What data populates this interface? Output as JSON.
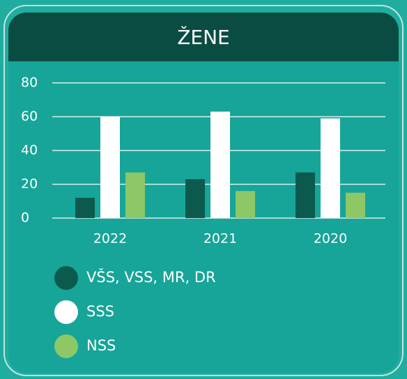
{
  "chart_data": {
    "type": "bar",
    "title": "ŽENE",
    "categories": [
      "2022",
      "2021",
      "2020"
    ],
    "series": [
      {
        "name": "VŠS, VSS, MR, DR",
        "color": "#0c5a4e",
        "values": [
          12,
          23,
          27
        ]
      },
      {
        "name": "SSS",
        "color": "#ffffff",
        "values": [
          60,
          63,
          59
        ]
      },
      {
        "name": "NSS",
        "color": "#8dc766",
        "values": [
          27,
          16,
          15
        ]
      }
    ],
    "ylim": [
      0,
      80
    ],
    "yticks": [
      0,
      20,
      40,
      60,
      80
    ],
    "grid": true
  }
}
